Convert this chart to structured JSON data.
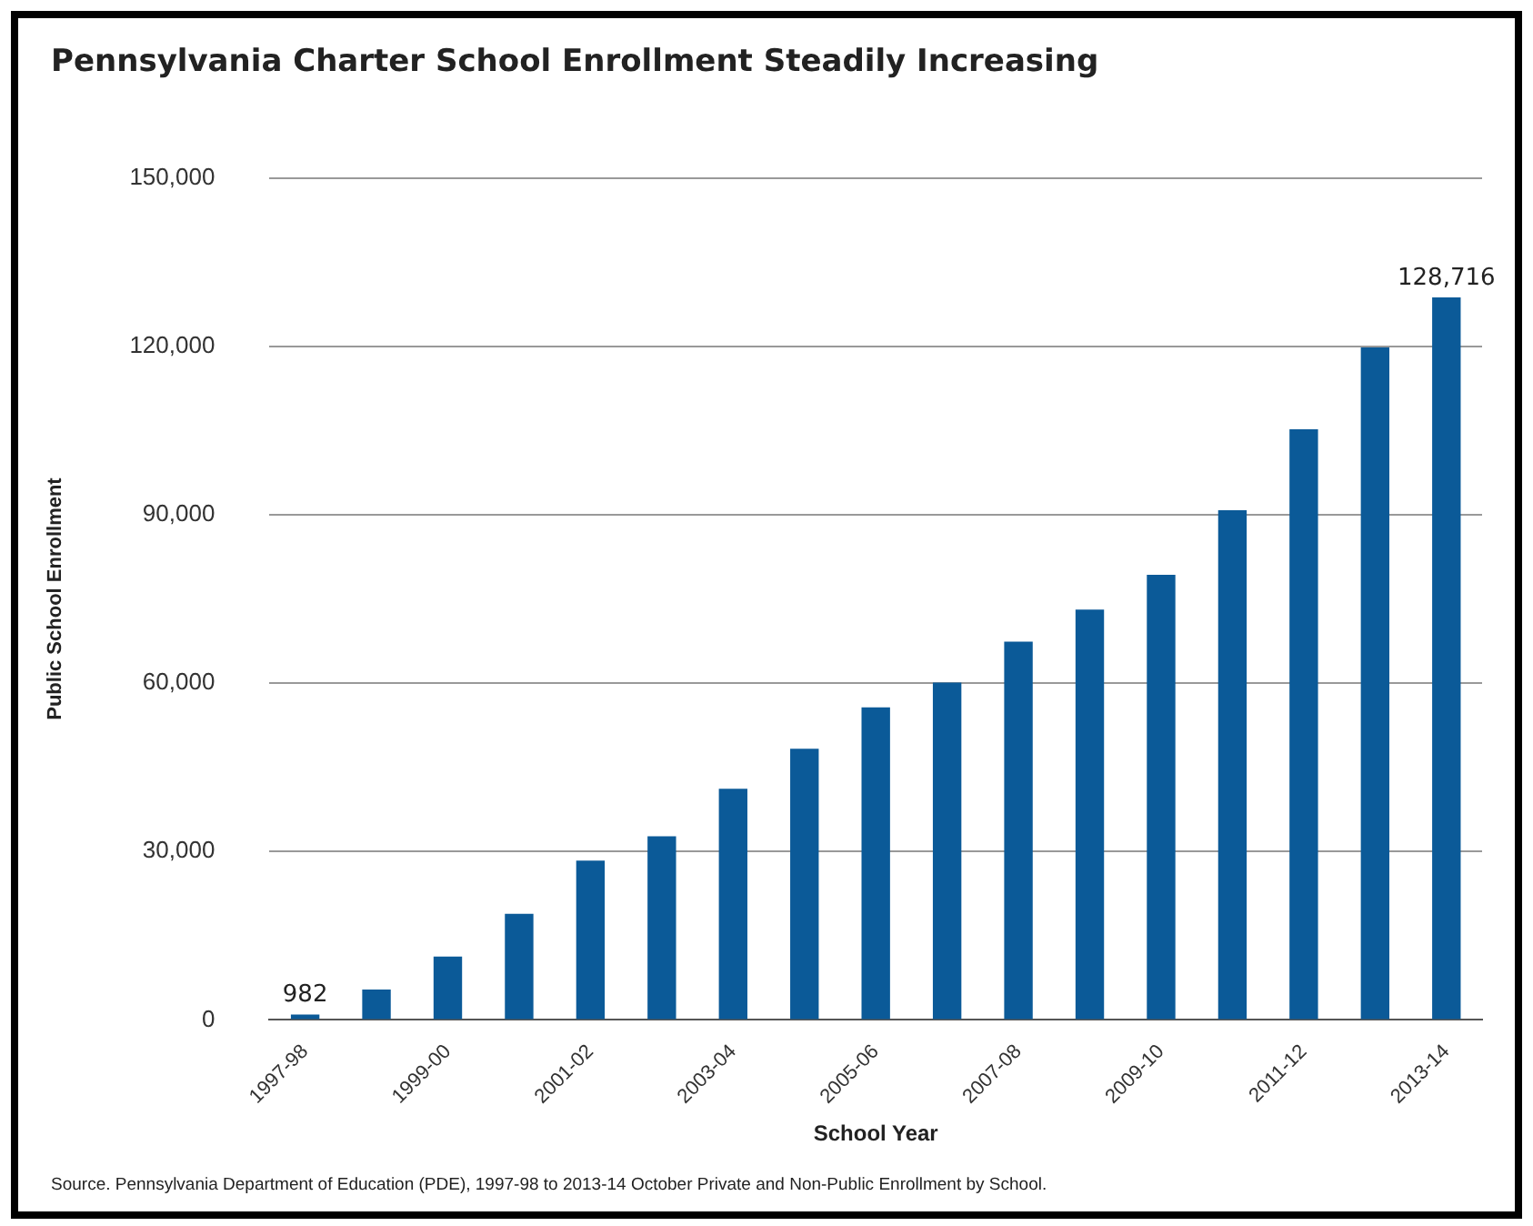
{
  "chart_data": {
    "type": "bar",
    "title": "Pennsylvania Charter School Enrollment Steadily Increasing",
    "xlabel": "School Year",
    "ylabel": "Public School Enrollment",
    "categories": [
      "1997-98",
      null,
      "1999-00",
      null,
      "2001-02",
      null,
      "2003-04",
      null,
      "2005-06",
      null,
      "2007-08",
      null,
      "2009-10",
      null,
      "2011-12",
      null,
      "2013-14"
    ],
    "values": [
      982,
      5400,
      11300,
      18900,
      28400,
      32700,
      41200,
      48300,
      55700,
      60100,
      67400,
      73100,
      79300,
      90800,
      105200,
      119800,
      128716
    ],
    "value_labels": [
      "982",
      null,
      null,
      null,
      null,
      null,
      null,
      null,
      null,
      null,
      null,
      null,
      null,
      null,
      null,
      null,
      "128,716"
    ],
    "color": "#0b5a98",
    "ylim": [
      0,
      150000
    ],
    "yticks": [
      0,
      {
        "value": 30000,
        "label": "30,000"
      },
      {
        "value": 60000,
        "label": "60,000"
      },
      {
        "value": 90000,
        "label": "90,000"
      },
      {
        "value": 120000,
        "label": "120,000"
      },
      {
        "value": 150000,
        "label": "150,000"
      }
    ],
    "grid": "y",
    "legend": false,
    "annotations": [
      "Source.  Pennsylvania Department of Education (PDE), 1997-98 to 2013-14 October Private and Non-Public Enrollment by School."
    ]
  }
}
